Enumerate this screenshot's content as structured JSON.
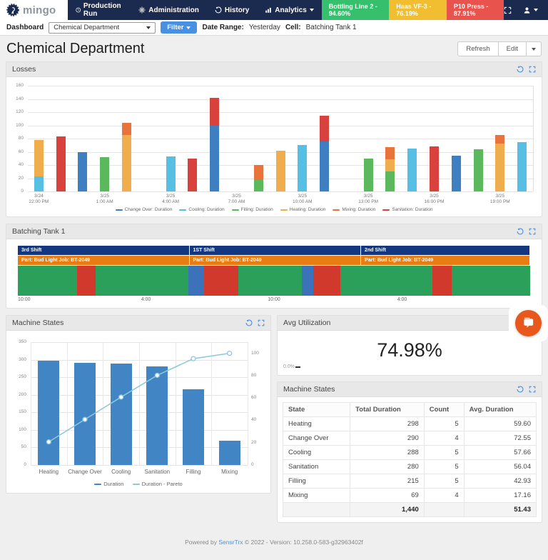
{
  "navbar": {
    "brand": "mingo",
    "items": [
      {
        "label": "Production Run",
        "icon": "clock-icon"
      },
      {
        "label": "Administration",
        "icon": "gear-icon"
      },
      {
        "label": "History",
        "icon": "history-icon"
      },
      {
        "label": "Analytics",
        "icon": "analytics-icon"
      }
    ],
    "machine_badges": [
      {
        "label": "Bottling Line 2 - 94.60%",
        "color": "#36C06E"
      },
      {
        "label": "Haas VF-3 - 76.19%",
        "color": "#F0BE30"
      },
      {
        "label": "P10 Press - 87.91%",
        "color": "#E8534E"
      }
    ]
  },
  "filter_bar": {
    "dashboard_label": "Dashboard",
    "dashboard_select_value": "Chemical Department",
    "filter_button": "Filter",
    "date_range_label": "Date Range:",
    "date_range_value": "Yesterday",
    "cell_label": "Cell:",
    "cell_value": "Batching Tank 1"
  },
  "page": {
    "title": "Chemical Department",
    "refresh_button": "Refresh",
    "edit_button": "Edit"
  },
  "panels": {
    "losses": {
      "title": "Losses"
    },
    "batching": {
      "title": "Batching Tank 1"
    },
    "machine_states_chart": {
      "title": "Machine States"
    },
    "avg_utilization": {
      "title": "Avg Utilization",
      "value": "74.98%",
      "min_label": "0.0%"
    },
    "machine_states_table": {
      "title": "Machine States"
    }
  },
  "machine_states_table": {
    "headers": [
      "State",
      "Total Duration",
      "Count",
      "Avg. Duration"
    ],
    "rows": [
      [
        "Heating",
        "298",
        "5",
        "59.60"
      ],
      [
        "Change Over",
        "290",
        "4",
        "72.55"
      ],
      [
        "Cooling",
        "288",
        "5",
        "57.66"
      ],
      [
        "Sanitation",
        "280",
        "5",
        "56.04"
      ],
      [
        "Filling",
        "215",
        "5",
        "42.93"
      ],
      [
        "Mixing",
        "69",
        "4",
        "17.16"
      ]
    ],
    "total_row": [
      "",
      "1,440",
      "",
      "51.43"
    ]
  },
  "chart_data": [
    {
      "id": "losses",
      "type": "bar",
      "stacked": true,
      "title": "Losses",
      "ylim": [
        0,
        160
      ],
      "yticks": [
        0,
        20,
        40,
        60,
        80,
        100,
        120,
        140,
        160
      ],
      "slots": 23,
      "xticks": [
        {
          "slot": 0,
          "line1": "3/24",
          "line2": "22:00 PM"
        },
        {
          "slot": 3,
          "line1": "3/25",
          "line2": "1:00 AM"
        },
        {
          "slot": 6,
          "line1": "3/25",
          "line2": "4:00 AM"
        },
        {
          "slot": 9,
          "line1": "3/25",
          "line2": "7:00 AM"
        },
        {
          "slot": 12,
          "line1": "3/25",
          "line2": "10:00 AM"
        },
        {
          "slot": 15,
          "line1": "3/25",
          "line2": "13:00 PM"
        },
        {
          "slot": 18,
          "line1": "3/25",
          "line2": "16:00 PM"
        },
        {
          "slot": 21,
          "line1": "3/25",
          "line2": "19:00 PM"
        }
      ],
      "series": [
        {
          "key": "Change Over",
          "label": "Change Over: Duration",
          "color": "#3E7FC1"
        },
        {
          "key": "Cooling",
          "label": "Cooling: Duration",
          "color": "#56BFE3"
        },
        {
          "key": "Filling",
          "label": "Filling: Duration",
          "color": "#5CB85C"
        },
        {
          "key": "Heating",
          "label": "Heating: Duration",
          "color": "#F0AD4E"
        },
        {
          "key": "Mixing",
          "label": "Mixing: Duration",
          "color": "#E8743C"
        },
        {
          "key": "Sanitation",
          "label": "Sanitation: Duration",
          "color": "#D9413D"
        }
      ],
      "bars": [
        {
          "slot": 0,
          "segments": [
            [
              "Cooling",
              23
            ],
            [
              "Heating",
              55
            ]
          ]
        },
        {
          "slot": 1,
          "segments": [
            [
              "Sanitation",
              83
            ]
          ]
        },
        {
          "slot": 2,
          "segments": [
            [
              "Change Over",
              59
            ]
          ]
        },
        {
          "slot": 3,
          "segments": [
            [
              "Filling",
              52
            ]
          ]
        },
        {
          "slot": 4,
          "segments": [
            [
              "Heating",
              85
            ],
            [
              "Mixing",
              19
            ]
          ]
        },
        {
          "slot": 6,
          "segments": [
            [
              "Cooling",
              53
            ]
          ]
        },
        {
          "slot": 7,
          "segments": [
            [
              "Sanitation",
              50
            ]
          ]
        },
        {
          "slot": 8,
          "segments": [
            [
              "Change Over",
              99
            ],
            [
              "Sanitation",
              43
            ]
          ]
        },
        {
          "slot": 10,
          "segments": [
            [
              "Filling",
              17
            ],
            [
              "Mixing",
              23
            ]
          ]
        },
        {
          "slot": 11,
          "segments": [
            [
              "Heating",
              62
            ]
          ]
        },
        {
          "slot": 12,
          "segments": [
            [
              "Cooling",
              70
            ]
          ]
        },
        {
          "slot": 13,
          "segments": [
            [
              "Change Over",
              76
            ],
            [
              "Sanitation",
              39
            ]
          ]
        },
        {
          "slot": 15,
          "segments": [
            [
              "Filling",
              50
            ]
          ]
        },
        {
          "slot": 16,
          "segments": [
            [
              "Filling",
              30
            ],
            [
              "Heating",
              19
            ],
            [
              "Mixing",
              18
            ]
          ]
        },
        {
          "slot": 17,
          "segments": [
            [
              "Cooling",
              65
            ]
          ]
        },
        {
          "slot": 18,
          "segments": [
            [
              "Sanitation",
              68
            ]
          ]
        },
        {
          "slot": 19,
          "segments": [
            [
              "Change Over",
              54
            ]
          ]
        },
        {
          "slot": 20,
          "segments": [
            [
              "Filling",
              64
            ]
          ]
        },
        {
          "slot": 21,
          "segments": [
            [
              "Heating",
              72
            ],
            [
              "Mixing",
              13
            ]
          ]
        },
        {
          "slot": 22,
          "segments": [
            [
              "Cooling",
              75
            ]
          ]
        }
      ]
    },
    {
      "id": "batching-tank-1",
      "type": "timeline",
      "shift_color": "#14387F",
      "job_color": "#E87D13",
      "state_colors": {
        "running": "#2BA05A",
        "down": "#D0392B",
        "changeover": "#3B72B9"
      },
      "shifts": [
        {
          "label": "3rd Shift",
          "start": 0,
          "end": 0.335
        },
        {
          "label": "1ST Shift",
          "start": 0.335,
          "end": 0.67
        },
        {
          "label": "2nd Shift",
          "start": 0.67,
          "end": 1
        }
      ],
      "jobs": [
        {
          "label": "Part: Bud Light  Job: BT-2049",
          "start": 0,
          "end": 0.335
        },
        {
          "label": "Part: Bud Light  Job: BT-2049",
          "start": 0.335,
          "end": 0.67
        },
        {
          "label": "Part: Bud Light  Job: BT-2049",
          "start": 0.67,
          "end": 1
        }
      ],
      "state_segments": [
        [
          "running",
          0,
          0.116
        ],
        [
          "down",
          0.116,
          0.152
        ],
        [
          "running",
          0.152,
          0.333
        ],
        [
          "changeover",
          0.333,
          0.363
        ],
        [
          "down",
          0.363,
          0.43
        ],
        [
          "running",
          0.43,
          0.554
        ],
        [
          "changeover",
          0.554,
          0.577
        ],
        [
          "down",
          0.577,
          0.63
        ],
        [
          "running",
          0.63,
          0.809
        ],
        [
          "down",
          0.809,
          0.847
        ],
        [
          "running",
          0.847,
          1
        ]
      ],
      "axis_ticks": [
        {
          "label": "10:00",
          "pos": 0
        },
        {
          "label": "4:00",
          "pos": 0.25
        },
        {
          "label": "10:00",
          "pos": 0.5
        },
        {
          "label": "4:00",
          "pos": 0.75
        }
      ]
    },
    {
      "id": "machine-states-pareto",
      "type": "bar+line",
      "categories": [
        "Heating",
        "Change Over",
        "Cooling",
        "Sanitation",
        "Filling",
        "Mixing"
      ],
      "bar_series": {
        "name": "Duration",
        "color": "#4285C4",
        "values": [
          298,
          290,
          288,
          280,
          215,
          69
        ]
      },
      "line_series": {
        "name": "Duration - Pareto",
        "color": "#8CC8DC",
        "axis": "right",
        "values": [
          20.7,
          40.8,
          60.8,
          80.3,
          95.2,
          100
        ]
      },
      "ylim_left": [
        0,
        350
      ],
      "yticks_left": [
        0,
        50,
        100,
        150,
        200,
        250,
        300,
        350
      ],
      "ylim_right": [
        0,
        110
      ],
      "yticks_right": [
        0,
        20,
        40,
        60,
        80,
        100
      ]
    }
  ],
  "footer": {
    "prefix": "Powered by",
    "link_text": "SensrTrx",
    "suffix": "© 2022 - Version: 10.258.0-583-g32963402f"
  }
}
